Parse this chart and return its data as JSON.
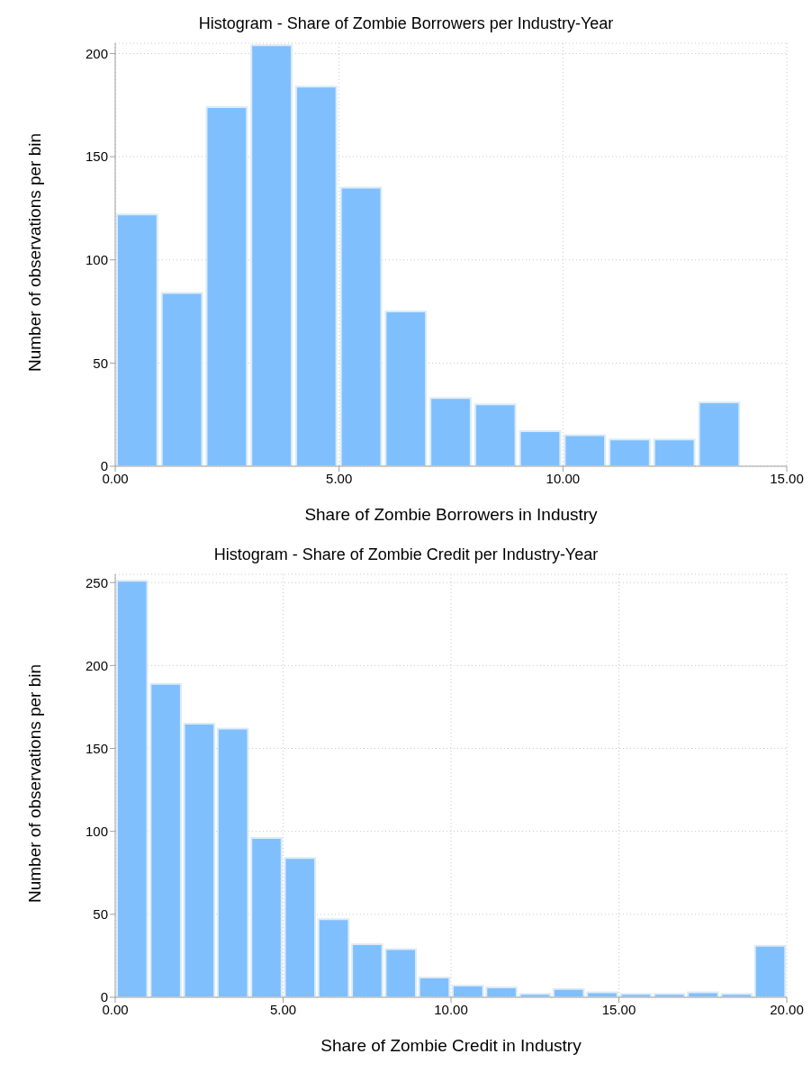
{
  "chart_data": [
    {
      "type": "histogram",
      "title": "Histogram - Share of Zombie Borrowers per Industry-Year",
      "xlabel": "Share of Zombie Borrowers in Industry",
      "ylabel": "Number of observations per bin",
      "color": "#80bffe",
      "bins": [
        0,
        1,
        2,
        3,
        4,
        5,
        6,
        7,
        8,
        9,
        10,
        11,
        12,
        13,
        14
      ],
      "values": [
        122,
        84,
        174,
        204,
        184,
        135,
        75,
        33,
        30,
        17,
        15,
        13,
        13,
        31
      ],
      "xlim": [
        0,
        15
      ],
      "xticks": [
        {
          "value": 0,
          "label": "0.00"
        },
        {
          "value": 5,
          "label": "5.00"
        },
        {
          "value": 10,
          "label": "10.00"
        },
        {
          "value": 15,
          "label": "15.00"
        }
      ],
      "ylim": [
        0,
        205
      ],
      "yticks": [
        0,
        50,
        100,
        150,
        200
      ],
      "grid": true
    },
    {
      "type": "histogram",
      "title": "Histogram - Share of Zombie Credit per Industry-Year",
      "xlabel": "Share of Zombie Credit in Industry",
      "ylabel": "Number of observations per bin",
      "color": "#80bffe",
      "bins": [
        0,
        1,
        2,
        3,
        4,
        5,
        6,
        7,
        8,
        9,
        10,
        11,
        12,
        13,
        14,
        15,
        16,
        17,
        18,
        19,
        20
      ],
      "values": [
        251,
        189,
        165,
        162,
        96,
        84,
        47,
        32,
        29,
        12,
        7,
        6,
        2,
        5,
        3,
        2,
        2,
        3,
        2,
        31
      ],
      "xlim": [
        0,
        20
      ],
      "xticks": [
        {
          "value": 0,
          "label": "0.00"
        },
        {
          "value": 5,
          "label": "5.00"
        },
        {
          "value": 10,
          "label": "10.00"
        },
        {
          "value": 15,
          "label": "15.00"
        },
        {
          "value": 20,
          "label": "20.00"
        }
      ],
      "ylim": [
        0,
        255
      ],
      "yticks": [
        0,
        50,
        100,
        150,
        200,
        250
      ],
      "grid": true
    }
  ]
}
